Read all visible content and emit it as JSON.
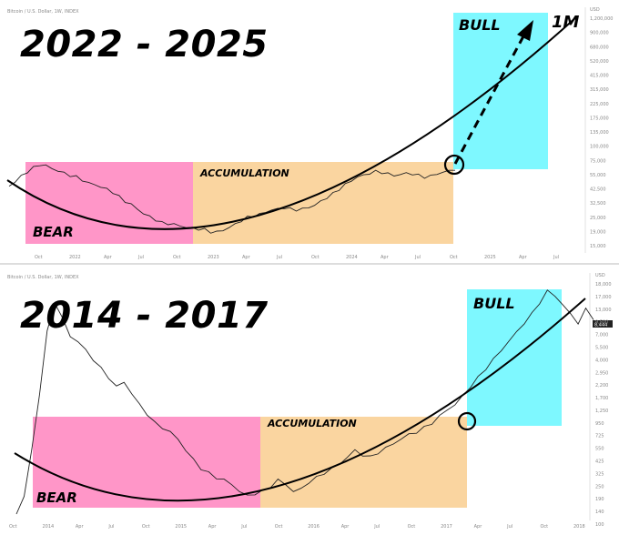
{
  "chart_data": [
    {
      "type": "line",
      "title": "2022 - 2025",
      "source_note": "Bitcoin / U.S. Dollar, 1W, INDEX",
      "currency": "USD",
      "x_ticks": [
        "Oct",
        "2022",
        "Apr",
        "Jul",
        "Oct",
        "2023",
        "Apr",
        "Jul",
        "Oct",
        "2024",
        "Apr",
        "Jul",
        "Oct",
        "2025",
        "Apr",
        "Jul"
      ],
      "y_ticks": [
        "1,200,000",
        "900,000",
        "680,000",
        "520,000",
        "415,000",
        "315,000",
        "225,000",
        "175,000",
        "135,000",
        "100,000",
        "75,000",
        "55,000",
        "42,500",
        "32,500",
        "25,000",
        "19,000",
        "15,000"
      ],
      "zones": [
        {
          "label": "BEAR",
          "color": "#ff96c8"
        },
        {
          "label": "ACCUMULATION",
          "color": "#fad5a0"
        },
        {
          "label": "BULL",
          "color": "#7ef8ff"
        }
      ],
      "annotation": "1M",
      "price": [
        0.66,
        0.72,
        0.79,
        0.85,
        0.9,
        0.94,
        0.93,
        0.89,
        0.86,
        0.83,
        0.8,
        0.78,
        0.74,
        0.7,
        0.68,
        0.65,
        0.62,
        0.58,
        0.52,
        0.46,
        0.42,
        0.36,
        0.3,
        0.26,
        0.22,
        0.18,
        0.17,
        0.16,
        0.14,
        0.12,
        0.11,
        0.1,
        0.09,
        0.06,
        0.06,
        0.08,
        0.12,
        0.16,
        0.21,
        0.25,
        0.27,
        0.29,
        0.32,
        0.35,
        0.36,
        0.38,
        0.36,
        0.35,
        0.36,
        0.38,
        0.41,
        0.46,
        0.51,
        0.56,
        0.62,
        0.68,
        0.73,
        0.78,
        0.8,
        0.83,
        0.85,
        0.84,
        0.82,
        0.8,
        0.81,
        0.83,
        0.82,
        0.8,
        0.78,
        0.79,
        0.82,
        0.84,
        0.86,
        0.88
      ]
    },
    {
      "type": "line",
      "title": "2014 - 2017",
      "source_note": "Bitcoin / U.S. Dollar, 1W, INDEX",
      "currency": "USD",
      "x_ticks": [
        "Oct",
        "2014",
        "Apr",
        "Jul",
        "Oct",
        "2015",
        "Apr",
        "Jul",
        "Oct",
        "2016",
        "Apr",
        "Jul",
        "Oct",
        "2017",
        "Apr",
        "Jul",
        "Oct",
        "2018"
      ],
      "y_ticks": [
        "18,000",
        "17,000",
        "13,000",
        "9,500",
        "7,000",
        "5,500",
        "4,000",
        "2,950",
        "2,200",
        "1,700",
        "1,250",
        "950",
        "725",
        "550",
        "425",
        "325",
        "250",
        "190",
        "140",
        "100"
      ],
      "last_price": "8,444",
      "zones": [
        {
          "label": "BEAR",
          "color": "#ff96c8"
        },
        {
          "label": "ACCUMULATION",
          "color": "#fad5a0"
        },
        {
          "label": "BULL",
          "color": "#7ef8ff"
        }
      ],
      "price": [
        0.02,
        0.1,
        0.3,
        0.55,
        0.82,
        0.95,
        0.88,
        0.8,
        0.78,
        0.74,
        0.7,
        0.66,
        0.62,
        0.58,
        0.6,
        0.55,
        0.5,
        0.46,
        0.42,
        0.4,
        0.38,
        0.35,
        0.3,
        0.26,
        0.22,
        0.2,
        0.18,
        0.17,
        0.15,
        0.12,
        0.1,
        0.11,
        0.12,
        0.14,
        0.17,
        0.15,
        0.12,
        0.13,
        0.16,
        0.18,
        0.2,
        0.22,
        0.24,
        0.27,
        0.3,
        0.28,
        0.27,
        0.29,
        0.31,
        0.33,
        0.35,
        0.37,
        0.38,
        0.4,
        0.42,
        0.45,
        0.48,
        0.5,
        0.54,
        0.58,
        0.62,
        0.66,
        0.7,
        0.74,
        0.78,
        0.82,
        0.86,
        0.9,
        0.95,
        1.0,
        0.98,
        0.94,
        0.9,
        0.86,
        0.92,
        0.88
      ]
    }
  ]
}
